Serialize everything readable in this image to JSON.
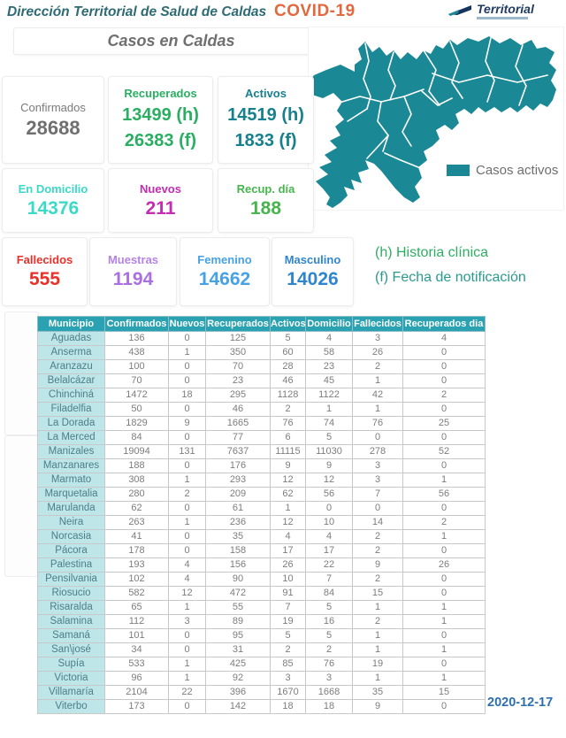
{
  "header": {
    "title": "Dirección Territorial de Salud de Caldas",
    "covid_label": "COVID-19",
    "logo_text": "Territorial"
  },
  "subtitle": "Casos en Caldas",
  "cards": {
    "confirmados": {
      "label": "Confirmados",
      "value": "28688"
    },
    "recuperados": {
      "label": "Recuperados",
      "value_h": "13499 (h)",
      "value_f": "26383 (f)"
    },
    "activos": {
      "label": "Activos",
      "value_h": "14519 (h)",
      "value_f": "1833 (f)"
    },
    "en_domicilio": {
      "label": "En Domicilio",
      "value": "14376"
    },
    "nuevos": {
      "label": "Nuevos",
      "value": "211"
    },
    "recup_dia": {
      "label": "Recup. día",
      "value": "188"
    },
    "fallecidos": {
      "label": "Fallecidos",
      "value": "555"
    },
    "muestras": {
      "label": "Muestras",
      "value": "1194"
    },
    "femenino": {
      "label": "Femenino",
      "value": "14662"
    },
    "masculino": {
      "label": "Masculino",
      "value": "14026"
    }
  },
  "legend": {
    "label": "Casos activos"
  },
  "notes": {
    "h": "(h) Historia clínica",
    "f": "(f) Fecha de notificación"
  },
  "table": {
    "columns": [
      "Municipio",
      "Confirmados",
      "Nuevos",
      "Recuperados",
      "Activos",
      "Domicilio",
      "Fallecidos",
      "Recuperados dia"
    ],
    "rows": [
      [
        "Aguadas",
        136,
        0,
        125,
        5,
        4,
        3,
        4
      ],
      [
        "Anserma",
        438,
        1,
        350,
        60,
        58,
        26,
        0
      ],
      [
        "Aranzazu",
        100,
        0,
        70,
        28,
        23,
        2,
        0
      ],
      [
        "Belalcázar",
        70,
        0,
        23,
        46,
        45,
        1,
        0
      ],
      [
        "Chinchiná",
        1472,
        18,
        295,
        1128,
        1122,
        42,
        2
      ],
      [
        "Filadelfia",
        50,
        0,
        46,
        2,
        1,
        1,
        0
      ],
      [
        "La Dorada",
        1829,
        9,
        1665,
        76,
        74,
        76,
        25
      ],
      [
        "La Merced",
        84,
        0,
        77,
        6,
        5,
        0,
        0
      ],
      [
        "Manizales",
        19094,
        131,
        7637,
        11115,
        11030,
        278,
        52
      ],
      [
        "Manzanares",
        188,
        0,
        176,
        9,
        9,
        3,
        0
      ],
      [
        "Marmato",
        308,
        1,
        293,
        12,
        12,
        3,
        1
      ],
      [
        "Marquetalia",
        280,
        2,
        209,
        62,
        56,
        7,
        56
      ],
      [
        "Marulanda",
        62,
        0,
        61,
        1,
        0,
        0,
        0
      ],
      [
        "Neira",
        263,
        1,
        236,
        12,
        10,
        14,
        2
      ],
      [
        "Norcasia",
        41,
        0,
        35,
        4,
        4,
        2,
        1
      ],
      [
        "Pácora",
        178,
        0,
        158,
        17,
        17,
        2,
        0
      ],
      [
        "Palestina",
        193,
        4,
        156,
        26,
        22,
        9,
        26
      ],
      [
        "Pensilvania",
        102,
        4,
        90,
        10,
        7,
        2,
        0
      ],
      [
        "Riosucio",
        582,
        12,
        472,
        91,
        84,
        15,
        0
      ],
      [
        "Risaralda",
        65,
        1,
        55,
        7,
        5,
        1,
        1
      ],
      [
        "Salamina",
        112,
        3,
        89,
        19,
        16,
        2,
        1
      ],
      [
        "Samaná",
        101,
        0,
        95,
        5,
        5,
        1,
        0
      ],
      [
        "San\\josé",
        34,
        0,
        31,
        2,
        2,
        1,
        1
      ],
      [
        "Supía",
        533,
        1,
        425,
        85,
        76,
        19,
        0
      ],
      [
        "Victoria",
        96,
        1,
        92,
        3,
        3,
        1,
        1
      ],
      [
        "Villamaría",
        2104,
        22,
        396,
        1670,
        1668,
        35,
        15
      ],
      [
        "Viterbo",
        173,
        0,
        142,
        18,
        18,
        9,
        0
      ]
    ]
  },
  "date": "2020-12-17",
  "colors": {
    "tealmap": "#1b8896",
    "headerbg": "#2aa2b1",
    "datecolor": "#2d6fad",
    "recuperados_green": "#2aae62",
    "activos_teal": "#17808e",
    "domicilio_turquoise": "#3bdac7",
    "nuevos_magenta": "#c42cb2",
    "fallecidos_red": "#e8312a",
    "muestras_purple": "#a96fe3",
    "femenino_blue": "#47a2e5",
    "masculino_blue": "#2f86cd",
    "covid_orange": "#e0693f"
  }
}
